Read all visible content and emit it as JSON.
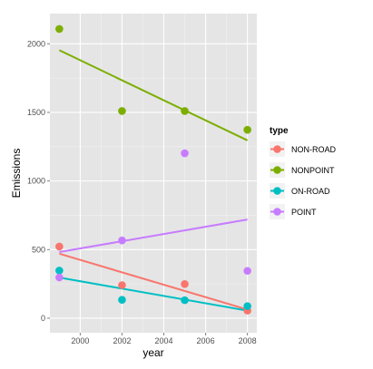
{
  "chart_data": {
    "type": "scatter",
    "xlabel": "year",
    "ylabel": "Emissions",
    "xlim": [
      1998.55,
      2008.45
    ],
    "ylim": [
      -106,
      2220
    ],
    "x_ticks": [
      2000,
      2002,
      2004,
      2006,
      2008
    ],
    "y_ticks": [
      0,
      500,
      1000,
      1500,
      2000
    ],
    "grid": true,
    "legend": {
      "title": "type",
      "placement": "right"
    },
    "series": [
      {
        "name": "NON-ROAD",
        "color": "#F8766D",
        "points": [
          [
            1999,
            522
          ],
          [
            2002,
            241
          ],
          [
            2005,
            249
          ],
          [
            2008,
            55
          ]
        ],
        "trend": [
          [
            1999,
            470
          ],
          [
            2008,
            63
          ]
        ]
      },
      {
        "name": "NONPOINT",
        "color": "#7CAE00",
        "points": [
          [
            1999,
            2108
          ],
          [
            2002,
            1510
          ],
          [
            2005,
            1510
          ],
          [
            2008,
            1373
          ]
        ],
        "trend": [
          [
            1999,
            1953
          ],
          [
            2008,
            1296
          ]
        ]
      },
      {
        "name": "ON-ROAD",
        "color": "#00BFC4",
        "points": [
          [
            1999,
            347
          ],
          [
            2002,
            134
          ],
          [
            2005,
            131
          ],
          [
            2008,
            88
          ]
        ],
        "trend": [
          [
            1999,
            296
          ],
          [
            2008,
            55
          ]
        ]
      },
      {
        "name": "POINT",
        "color": "#C77CFF",
        "points": [
          [
            1999,
            297
          ],
          [
            2002,
            567
          ],
          [
            2005,
            1202
          ],
          [
            2008,
            345
          ]
        ],
        "trend": [
          [
            1999,
            482
          ],
          [
            2008,
            719
          ]
        ]
      }
    ]
  }
}
